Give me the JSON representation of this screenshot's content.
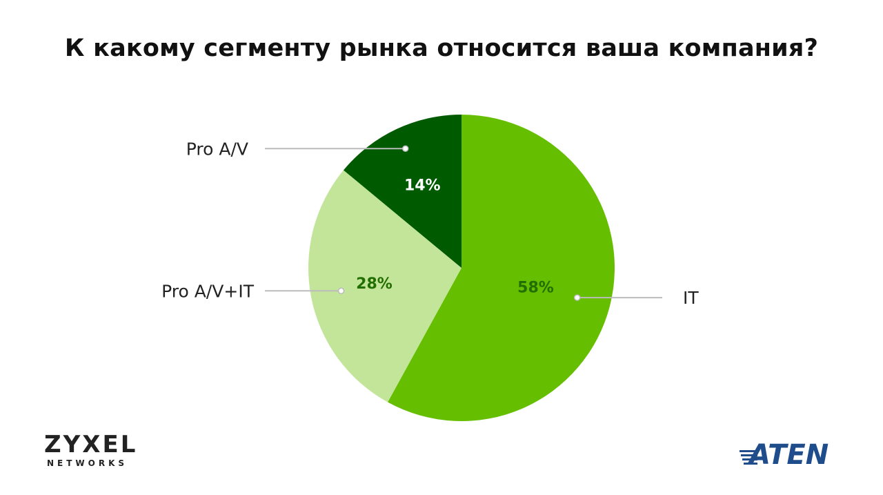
{
  "title": "К какому сегменту рынка относится ваша компания?",
  "colors": {
    "it": "#66be00",
    "pro_av": "#005a00",
    "pro_av_it": "#c2e59a",
    "leader": "#bbbbbb",
    "pct_dark": "#226e00",
    "pct_light": "#ffffff"
  },
  "chart_data": {
    "type": "pie",
    "title": "К какому сегменту рынка относится ваша компания?",
    "slices": [
      {
        "label": "IT",
        "value": 58,
        "display": "58%",
        "color": "#66be00"
      },
      {
        "label": "Pro A/V+IT",
        "value": 28,
        "display": "28%",
        "color": "#c2e59a"
      },
      {
        "label": "Pro A/V",
        "value": 14,
        "display": "14%",
        "color": "#005a00"
      }
    ],
    "start": "12 o'clock",
    "direction": "clockwise",
    "labels": "outside with leader lines",
    "legend": "none"
  },
  "logos": {
    "zyxel_main": "ZYXEL",
    "zyxel_sub": "NETWORKS",
    "aten": "ATEN"
  }
}
